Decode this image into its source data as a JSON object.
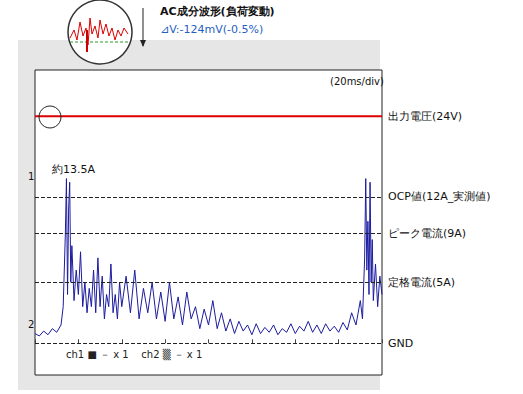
{
  "chart_data": {
    "type": "line",
    "title": "AC成分波形(負荷変動)",
    "subtitle": "⊿V:-124mV(-0.5%)",
    "annotations": [
      "(20ms/div)",
      "約13.5A",
      "1",
      "2",
      "ch1 ■ － x 1    ch2 ▒ － x 1"
    ],
    "xlim": [
      0,
      160
    ],
    "xticks": [
      0,
      20,
      40,
      60,
      80,
      100,
      120,
      140,
      160
    ],
    "ylim": [
      -2.6,
      22.4
    ],
    "yticks": [
      {
        "value": 12,
        "label": "OCP値(12A_実測値)"
      },
      {
        "value": 9,
        "label": "ピーク電流(9A)"
      },
      {
        "value": 5,
        "label": "定格電流(5A)"
      },
      {
        "value": 0,
        "label": "GND"
      }
    ],
    "y2lim": [
      -4,
      29
    ],
    "grid": false,
    "tick_labels": "y",
    "series": [
      {
        "color": "#1c1ca0",
        "line_style": "solid",
        "x": [
          0,
          2,
          4,
          6,
          8,
          10,
          12,
          13,
          14,
          14.5,
          15,
          15.5,
          16,
          16.5,
          17,
          18,
          19,
          20,
          21,
          22,
          23,
          24,
          25,
          26,
          27,
          28,
          29,
          30,
          31,
          32,
          33,
          34,
          35,
          36,
          37,
          38,
          39,
          40,
          42,
          44,
          46,
          48,
          50,
          52,
          54,
          56,
          58,
          60,
          62,
          64,
          66,
          68,
          70,
          72,
          74,
          76,
          78,
          80,
          82,
          84,
          86,
          88,
          90,
          92,
          94,
          96,
          98,
          100,
          102,
          104,
          106,
          108,
          110,
          112,
          114,
          116,
          118,
          120,
          122,
          124,
          126,
          128,
          130,
          132,
          134,
          136,
          138,
          140,
          142,
          144,
          146,
          148,
          150,
          151,
          152,
          152.5,
          153,
          153.5,
          154,
          154.5,
          155,
          155.5,
          156,
          157,
          158,
          159,
          160
        ],
        "values": [
          0.8,
          0.6,
          1.0,
          0.7,
          1.2,
          0.9,
          1.5,
          3.0,
          9.0,
          13.5,
          4.0,
          11.0,
          13.2,
          5.0,
          8.0,
          3.5,
          6.0,
          4.0,
          7.5,
          3.0,
          5.0,
          2.5,
          4.5,
          3.0,
          6.0,
          2.5,
          7.0,
          3.0,
          5.5,
          2.0,
          4.0,
          3.0,
          6.5,
          2.5,
          4.0,
          2.0,
          5.0,
          3.0,
          5.5,
          2.5,
          6.0,
          2.0,
          4.5,
          2.5,
          5.0,
          2.0,
          4.2,
          1.8,
          5.0,
          2.0,
          3.8,
          1.5,
          4.2,
          2.0,
          3.0,
          1.2,
          2.8,
          1.5,
          3.5,
          1.2,
          2.5,
          1.0,
          2.0,
          0.8,
          1.8,
          1.0,
          1.5,
          0.7,
          1.6,
          0.8,
          1.3,
          0.9,
          1.5,
          0.7,
          1.2,
          0.9,
          1.6,
          0.8,
          1.4,
          1.0,
          1.8,
          0.9,
          1.5,
          0.8,
          1.6,
          1.0,
          1.4,
          0.9,
          1.7,
          1.1,
          2.5,
          1.5,
          3.5,
          2.0,
          7.0,
          13.5,
          6.0,
          10.0,
          4.0,
          13.2,
          5.0,
          8.5,
          3.5,
          6.5,
          3.0,
          5.5,
          4.0
        ]
      },
      {
        "name": "出力電圧(24V)",
        "color": "#dd0000",
        "axis": "y2",
        "line_style": "solid",
        "x": [
          0,
          160
        ],
        "values": [
          24,
          24
        ]
      }
    ]
  }
}
